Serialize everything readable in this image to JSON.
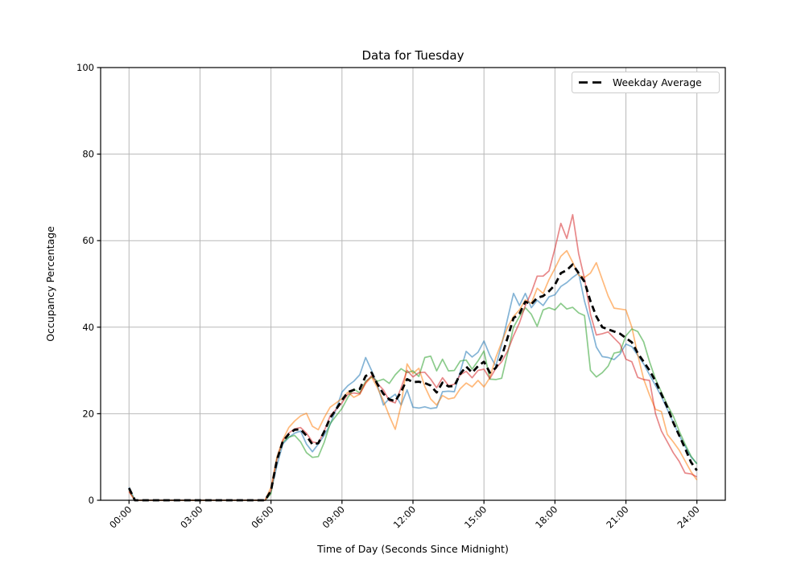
{
  "window": {
    "background": "#ffffff"
  },
  "colors": {
    "frame": "#000000",
    "grid": "#b8b8b8",
    "legend_border": "#cccccc",
    "legend_bg": "#ffffff",
    "series_blue": "#1f77b4",
    "series_orange": "#ff7f0e",
    "series_green": "#2ca02c",
    "series_red": "#d62728",
    "average": "#000000"
  },
  "chart_data": {
    "type": "line",
    "title": "Data for Tuesday",
    "xlabel": "Time of Day (Seconds Since Midnight)",
    "ylabel": "Occupancy Percentage",
    "ylim": [
      0,
      100
    ],
    "xlim_seconds": [
      -4320,
      90720
    ],
    "grid": true,
    "legend_position": "upper right",
    "x_tick_hours": [
      0,
      3,
      6,
      9,
      12,
      15,
      18,
      21,
      24
    ],
    "x_tick_labels": [
      "00:00",
      "03:00",
      "06:00",
      "09:00",
      "12:00",
      "15:00",
      "18:00",
      "21:00",
      "24:00"
    ],
    "y_ticks": [
      0,
      20,
      40,
      60,
      80,
      100
    ],
    "y_tick_labels": [
      "0",
      "20",
      "40",
      "60",
      "80",
      "100"
    ],
    "x_start_hours": 0,
    "x_step_hours": 0.25,
    "series": [
      {
        "name": "day-series-1",
        "color": "#1f77b4",
        "alpha": 0.55,
        "width": 1.7,
        "dash": null,
        "in_legend": false,
        "values": [
          3,
          0,
          0,
          0,
          0,
          0,
          0,
          0,
          0,
          0,
          0,
          0,
          0,
          0,
          0,
          0,
          0,
          0,
          0,
          0,
          0,
          0,
          0,
          0,
          2,
          8,
          13,
          14.5,
          15.5,
          16,
          13,
          11.2,
          13,
          15,
          17.5,
          21,
          25,
          26.5,
          27.5,
          29,
          33,
          30,
          26.5,
          22,
          23.5,
          24.5,
          22,
          25.5,
          21.5,
          21.3,
          21.6,
          21.2,
          21.4,
          25.1,
          25.2,
          25.1,
          29.8,
          34.4,
          33.1,
          34.2,
          36.8,
          33.5,
          31,
          36,
          42,
          47.8,
          45,
          47.8,
          44.5,
          46.2,
          45,
          47,
          47.5,
          49.4,
          50.3,
          51.5,
          52.5,
          46,
          41,
          35.4,
          33.2,
          33,
          32.5,
          33.8,
          36.1,
          35.5,
          33.5,
          31.5,
          29,
          26.5,
          24,
          21,
          18,
          15,
          12.5,
          10,
          8.5
        ]
      },
      {
        "name": "day-series-2",
        "color": "#ff7f0e",
        "alpha": 0.55,
        "width": 1.7,
        "dash": null,
        "in_legend": false,
        "values": [
          2,
          0,
          0,
          0,
          0,
          0,
          0,
          0,
          0,
          0,
          0,
          0,
          0,
          0,
          0,
          0,
          0,
          0,
          0,
          0,
          0,
          0,
          0,
          0,
          3,
          10,
          14,
          16.8,
          18.3,
          19.5,
          20.1,
          17.1,
          16.3,
          19.1,
          21.5,
          22.5,
          23.5,
          25,
          23.8,
          24.5,
          27,
          28.5,
          26,
          23,
          19.5,
          16.4,
          22,
          31.5,
          29.3,
          30.5,
          26.3,
          23.4,
          22,
          24.2,
          23.4,
          23.7,
          25.8,
          27.1,
          26.2,
          27.7,
          26.2,
          28.3,
          33,
          36.5,
          40,
          42.5,
          44,
          46.3,
          45.5,
          49,
          47.8,
          51,
          53.6,
          56.4,
          57.7,
          55,
          52,
          51.5,
          52.5,
          54.9,
          51,
          47.2,
          44.4,
          44.2,
          44,
          40,
          33.6,
          28,
          24.3,
          21,
          20.5,
          15.2,
          13.5,
          11.6,
          9.1,
          6.6,
          4.7
        ]
      },
      {
        "name": "day-series-3",
        "color": "#2ca02c",
        "alpha": 0.55,
        "width": 1.7,
        "dash": null,
        "in_legend": false,
        "values": [
          2.5,
          0,
          0,
          0,
          0,
          0,
          0,
          0,
          0,
          0,
          0,
          0,
          0,
          0,
          0,
          0,
          0,
          0,
          0,
          0,
          0,
          0,
          0,
          0,
          1.5,
          9.7,
          13.4,
          14.6,
          15,
          13.5,
          11,
          9.9,
          10.1,
          13.4,
          17.7,
          19.5,
          21.2,
          23.8,
          25.7,
          24.8,
          27.5,
          28.5,
          27.5,
          28,
          27,
          29,
          30.4,
          29.5,
          29.9,
          28.6,
          33,
          33.3,
          29.9,
          32.6,
          29.9,
          30,
          32.2,
          32.4,
          30.3,
          32.2,
          34.5,
          28,
          27.9,
          28.2,
          34,
          40,
          42.5,
          44.5,
          43,
          40.2,
          44,
          44.5,
          44,
          45.5,
          44.2,
          44.6,
          43.3,
          42.7,
          30,
          28.5,
          29.5,
          31,
          34,
          34.3,
          38,
          39.6,
          39,
          36.6,
          32,
          28,
          25,
          22,
          19.5,
          16,
          13,
          10.2,
          8.4
        ]
      },
      {
        "name": "day-series-4",
        "color": "#d62728",
        "alpha": 0.55,
        "width": 1.7,
        "dash": null,
        "in_legend": false,
        "values": [
          2,
          0,
          0,
          0,
          0,
          0,
          0,
          0,
          0,
          0,
          0,
          0,
          0,
          0,
          0,
          0,
          0,
          0,
          0,
          0,
          0,
          0,
          0,
          0,
          2.2,
          9.5,
          13.8,
          15.5,
          16.5,
          16.8,
          15.5,
          13.5,
          13.2,
          16,
          19.5,
          21,
          22.5,
          24.5,
          24.8,
          24.6,
          27.2,
          28.8,
          27,
          25.5,
          23,
          22.5,
          26,
          30,
          28.5,
          29.5,
          29.6,
          28,
          26,
          28.3,
          26.5,
          26.8,
          29,
          29.8,
          28.3,
          30,
          30.3,
          28.1,
          30.5,
          32,
          34.5,
          38,
          41,
          45,
          48,
          51.8,
          51.8,
          53,
          58.2,
          64,
          60.5,
          66,
          57,
          51.2,
          43,
          38.2,
          38.5,
          38.9,
          37.5,
          36.1,
          32.6,
          32,
          28.4,
          27.9,
          27.7,
          20,
          16,
          13.5,
          11,
          9,
          6.3,
          6.1,
          5.4
        ]
      },
      {
        "name": "Weekday Average",
        "color": "#000000",
        "alpha": 1,
        "width": 2.8,
        "dash": [
          8,
          5
        ],
        "in_legend": true,
        "values": [
          2.8,
          0,
          0,
          0,
          0,
          0,
          0,
          0,
          0,
          0,
          0,
          0,
          0,
          0,
          0,
          0,
          0,
          0,
          0,
          0,
          0,
          0,
          0,
          0,
          2.2,
          9.3,
          13.6,
          15.3,
          16.3,
          16.4,
          14.9,
          12.9,
          13.2,
          15.9,
          19,
          21,
          23.1,
          25,
          25.5,
          25.7,
          28.7,
          29.5,
          26.8,
          24.6,
          23.3,
          22.9,
          25.1,
          28,
          27.3,
          27.4,
          27.1,
          26.5,
          24.9,
          27.2,
          26.3,
          26.4,
          29.2,
          30.9,
          29.5,
          31,
          32,
          29.5,
          30.6,
          33.2,
          37.6,
          42.1,
          43.1,
          45.9,
          45.3,
          46.8,
          47.2,
          48.3,
          49.8,
          52.5,
          53.2,
          54.5,
          52.5,
          50.5,
          46,
          42.5,
          40,
          39.5,
          39,
          38.5,
          37.5,
          36.5,
          34,
          32,
          30,
          27.5,
          24.5,
          21.5,
          18,
          15,
          12,
          8.8,
          6.9
        ]
      }
    ]
  }
}
